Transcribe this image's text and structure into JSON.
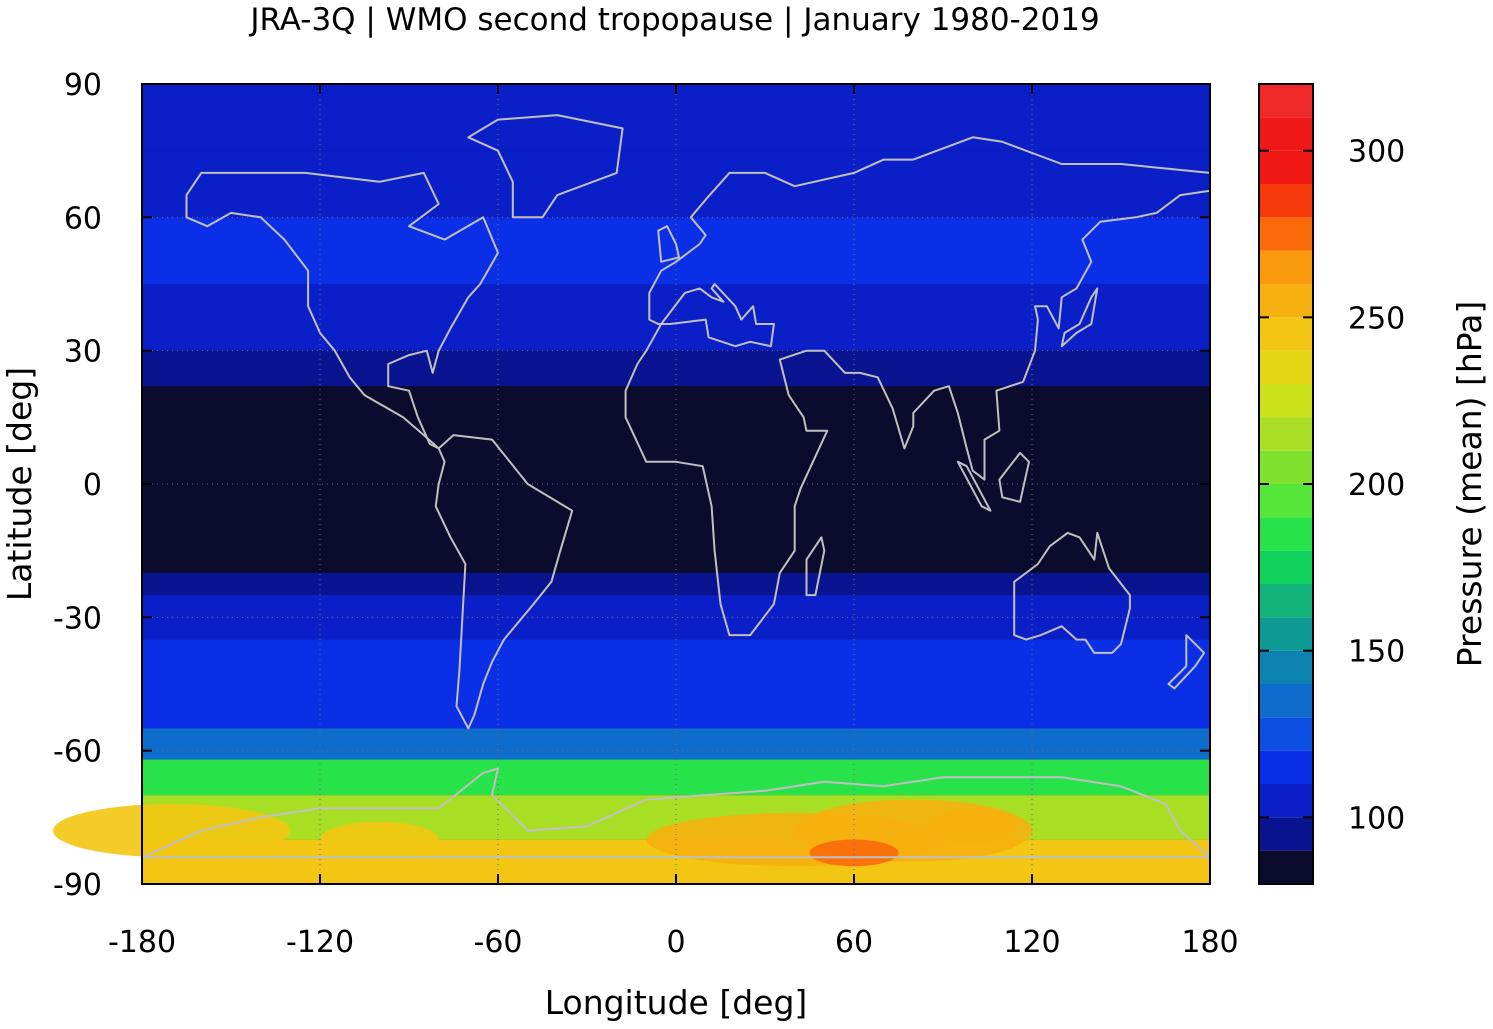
{
  "chart_data": {
    "type": "heatmap",
    "title": "JRA-3Q | WMO second tropopause | January 1980-2019",
    "xlabel": "Longitude [deg]",
    "ylabel": "Latitude [deg]",
    "xlim": [
      -180,
      180
    ],
    "ylim": [
      -90,
      90
    ],
    "xticks": [
      "-180",
      "-120",
      "-60",
      "0",
      "60",
      "120",
      "180"
    ],
    "yticks": [
      "90",
      "60",
      "30",
      "0",
      "-30",
      "-60",
      "-90"
    ],
    "colorbar": {
      "label": "Pressure (mean) [hPa]",
      "range": [
        80,
        320
      ],
      "step": 10,
      "ticks": [
        "100",
        "150",
        "200",
        "250",
        "300"
      ],
      "colors": [
        "#0b0b2e",
        "#0a1490",
        "#0b1fc8",
        "#0a2fe6",
        "#0d4ee3",
        "#0e6ccd",
        "#0d82b0",
        "#0d9a95",
        "#10b47a",
        "#10d25c",
        "#28e24a",
        "#55e63a",
        "#80e22f",
        "#a8de23",
        "#cce21a",
        "#e4d816",
        "#f2c612",
        "#f6b010",
        "#f99a0c",
        "#fb6a0a",
        "#f63a0c",
        "#f01812",
        "#ee1818",
        "#f02828",
        "#f24848",
        "#f88080",
        "#ffc8c8"
      ]
    },
    "coastline_color": "#c0c0c0",
    "grid": "dotted",
    "zonal_mean_pressure_hPa": [
      {
        "lat": [
          75,
          90
        ],
        "value": 100
      },
      {
        "lat": [
          60,
          75
        ],
        "value": 105
      },
      {
        "lat": [
          45,
          60
        ],
        "value": 110
      },
      {
        "lat": [
          30,
          45
        ],
        "value": 108
      },
      {
        "lat": [
          22,
          30
        ],
        "value": 95
      },
      {
        "lat": [
          -20,
          22
        ],
        "value": 82
      },
      {
        "lat": [
          -25,
          -20
        ],
        "value": 95
      },
      {
        "lat": [
          -35,
          -25
        ],
        "value": 102
      },
      {
        "lat": [
          -45,
          -35
        ],
        "value": 112
      },
      {
        "lat": [
          -55,
          -45
        ],
        "value": 118
      },
      {
        "lat": [
          -62,
          -55
        ],
        "value": 138
      },
      {
        "lat": [
          -70,
          -62
        ],
        "value": 180
      },
      {
        "lat": [
          -80,
          -70
        ],
        "value": 210
      },
      {
        "lat": [
          -90,
          -80
        ],
        "value": 240
      }
    ]
  }
}
